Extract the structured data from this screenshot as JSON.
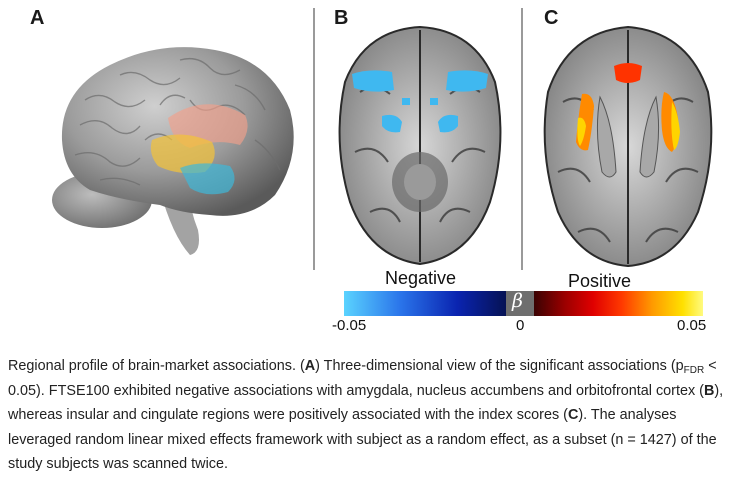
{
  "panels": {
    "a": "A",
    "b": "B",
    "c": "C"
  },
  "colorbar": {
    "negative_label": "Negative",
    "positive_label": "Positive",
    "symbol": "β",
    "tick_min": "-0.05",
    "tick_zero": "0",
    "tick_max": "0.05"
  },
  "caption": {
    "s1": "Regional profile of brain-market associations. (",
    "bA": "A",
    "s2": ") Three-dimensional view of the significant associations (p",
    "sub": "FDR",
    "s3": " < 0.05). FTSE100 exhibited negative associations with amygdala, nucleus accumbens and orbitofrontal cortex (",
    "bB": "B",
    "s4": "), whereas insular and cingulate regions were positively associated with the index scores (",
    "bC": "C",
    "s5": "). The analyses leveraged random linear mixed effects framework with subject as a random effect, as a subset (n = 1427) of the study subjects was scanned twice."
  },
  "colors": {
    "negative": "#3fb8f0",
    "positive_core": "#ff3300",
    "positive_edge": "#ffd400",
    "brain_gray": "#8f8f8f"
  }
}
